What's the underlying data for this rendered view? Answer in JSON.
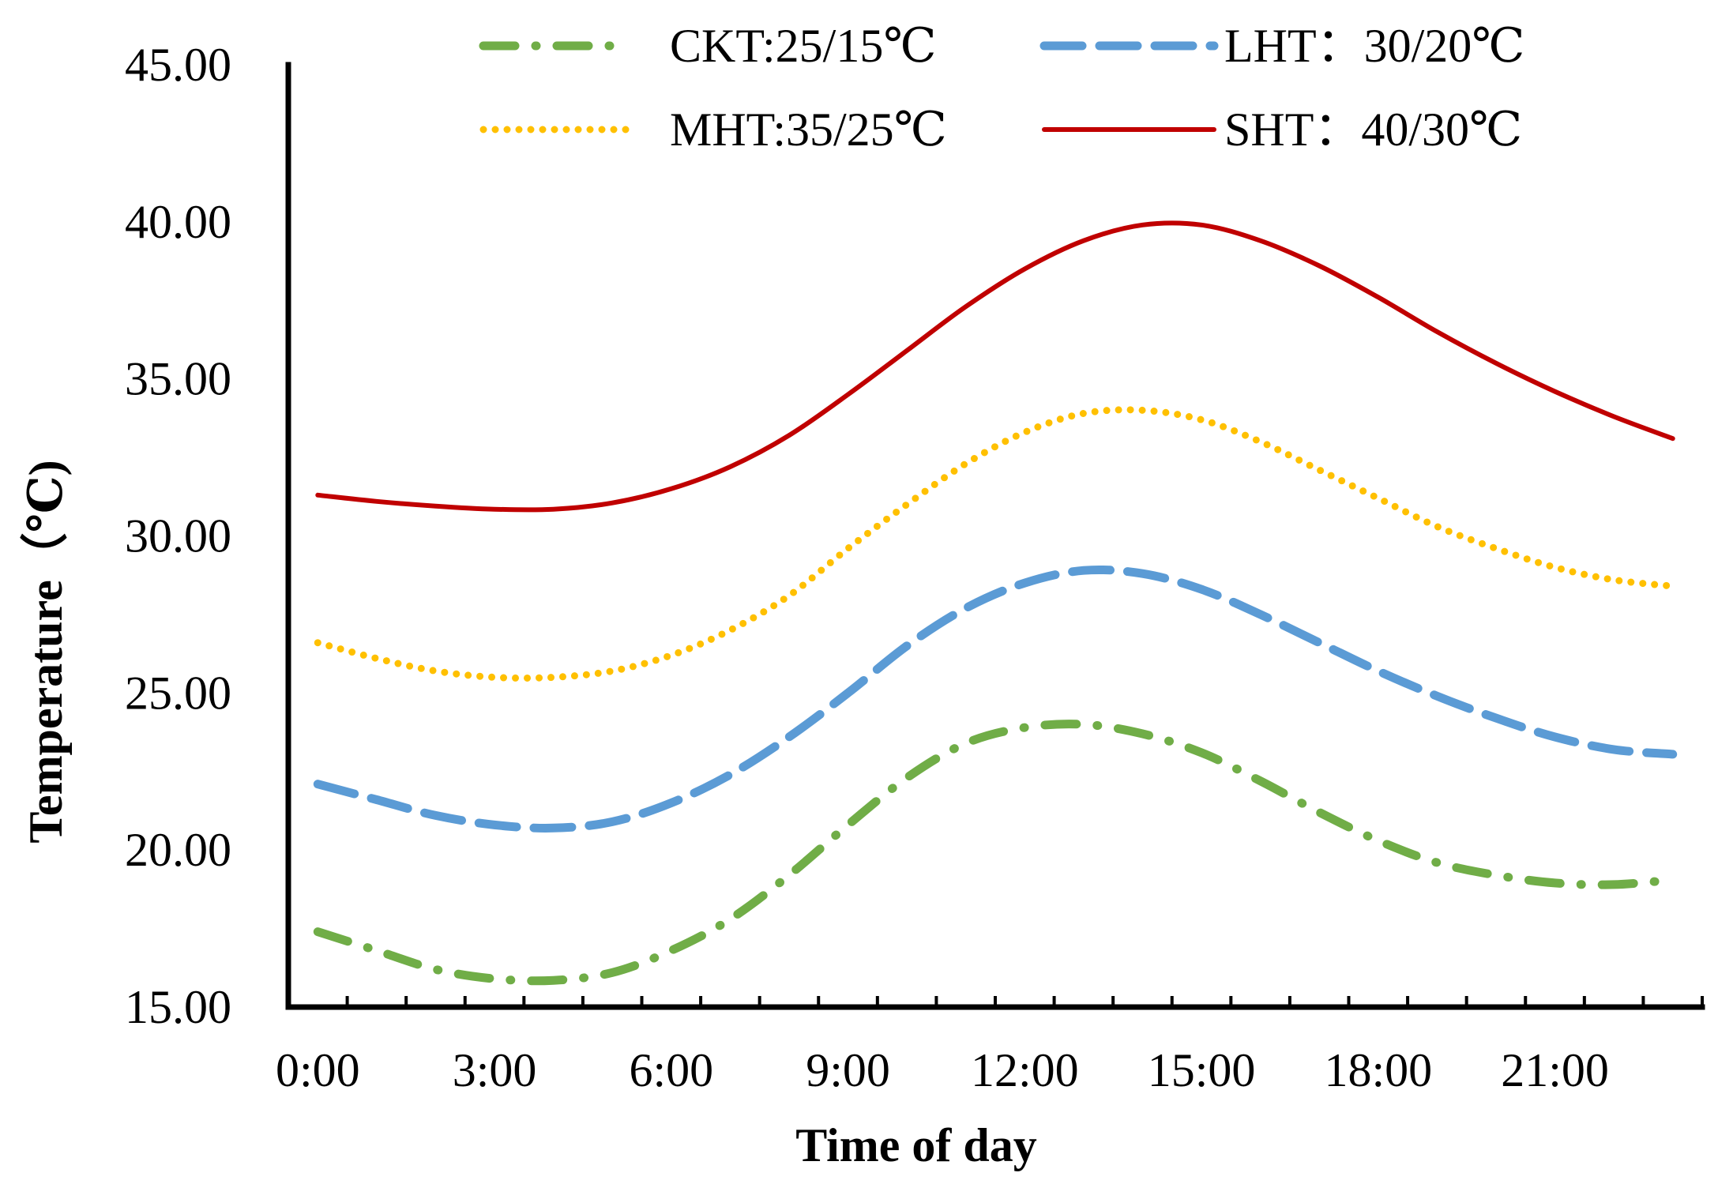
{
  "chart_data": {
    "type": "line",
    "title": "",
    "xlabel": "Time of day",
    "ylabel": "Temperature（℃)",
    "ylim": [
      15,
      45
    ],
    "yticks": [
      "15.00",
      "20.00",
      "25.00",
      "30.00",
      "35.00",
      "40.00",
      "45.00"
    ],
    "xticks": [
      "0:00",
      "3:00",
      "6:00",
      "9:00",
      "12:00",
      "15:00",
      "18:00",
      "21:00"
    ],
    "x": [
      0.5,
      1.5,
      2.5,
      3.5,
      4.5,
      5.5,
      6.5,
      7.5,
      8.5,
      9.5,
      10.5,
      11.5,
      12.5,
      13.5,
      14.5,
      15.5,
      16.5,
      17.5,
      18.5,
      19.5,
      20.5,
      21.5,
      22.5,
      23.5
    ],
    "xlim": [
      0,
      24
    ],
    "grid": false,
    "legend_position": "top",
    "series": [
      {
        "name": "CKT:25/15℃",
        "style": "dash-dot",
        "color": "#70ad47",
        "values": [
          17.4,
          16.8,
          16.2,
          15.9,
          15.85,
          16.1,
          16.8,
          17.8,
          19.2,
          20.8,
          22.3,
          23.4,
          23.9,
          24.0,
          23.7,
          23.1,
          22.2,
          21.2,
          20.3,
          19.6,
          19.2,
          18.95,
          18.9,
          19.05
        ]
      },
      {
        "name": "LHT：30/20℃",
        "style": "dash",
        "color": "#5b9bd5",
        "values": [
          22.1,
          21.6,
          21.1,
          20.8,
          20.7,
          20.9,
          21.5,
          22.4,
          23.6,
          25.0,
          26.5,
          27.7,
          28.5,
          28.9,
          28.8,
          28.3,
          27.5,
          26.6,
          25.7,
          24.9,
          24.2,
          23.6,
          23.2,
          23.05
        ]
      },
      {
        "name": "MHT:35/25℃",
        "style": "dot",
        "color": "#ffc000",
        "values": [
          26.6,
          26.1,
          25.7,
          25.5,
          25.5,
          25.7,
          26.2,
          27.0,
          28.1,
          29.6,
          31.0,
          32.3,
          33.3,
          33.9,
          34.0,
          33.7,
          33.0,
          32.1,
          31.2,
          30.3,
          29.6,
          29.0,
          28.6,
          28.4
        ]
      },
      {
        "name": "SHT：40/30℃",
        "style": "solid",
        "color": "#c00000",
        "values": [
          31.3,
          31.1,
          30.95,
          30.85,
          30.85,
          31.05,
          31.5,
          32.2,
          33.2,
          34.5,
          35.9,
          37.3,
          38.5,
          39.4,
          39.9,
          39.9,
          39.4,
          38.6,
          37.6,
          36.5,
          35.5,
          34.6,
          33.8,
          33.1
        ]
      }
    ]
  }
}
